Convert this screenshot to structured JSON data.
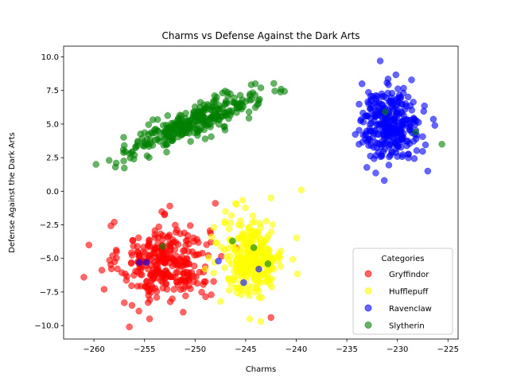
{
  "chart_data": {
    "type": "scatter",
    "title": "Charms vs Defense Against the Dark Arts",
    "xlabel": "Charms",
    "ylabel": "Defense Against the Dark Arts",
    "xlim": [
      -263,
      -224
    ],
    "ylim": [
      -11,
      10.8
    ],
    "xticks": [
      -260,
      -255,
      -250,
      -245,
      -240,
      -235,
      -230,
      -225
    ],
    "yticks": [
      -10.0,
      -7.5,
      -5.0,
      -2.5,
      0.0,
      2.5,
      5.0,
      7.5,
      10.0
    ],
    "xtick_labels": [
      "−260",
      "−255",
      "−250",
      "−245",
      "−240",
      "−235",
      "−230",
      "−225"
    ],
    "ytick_labels": [
      "−10.0",
      "−7.5",
      "−5.0",
      "−2.5",
      "0.0",
      "2.5",
      "5.0",
      "7.5",
      "10.0"
    ],
    "grid": false,
    "legend": {
      "title": "Categories",
      "position": "lower-right"
    },
    "marker_alpha": 0.6,
    "series": [
      {
        "name": "Gryffindor",
        "color": "#ff0000",
        "count": 300,
        "center": [
          -253,
          -5.3
        ],
        "spread": [
          2.2,
          1.4
        ],
        "outliers": [
          [
            -260.5,
            -4.0
          ],
          [
            -261,
            -6.4
          ],
          [
            -258,
            -2.3
          ],
          [
            -256.5,
            -10.1
          ],
          [
            -252.5,
            -1.1
          ],
          [
            -248,
            -0.9
          ],
          [
            -242.5,
            -9.4
          ],
          [
            -259,
            -7.3
          ],
          [
            -257,
            -8.3
          ],
          [
            -254.5,
            -9.5
          ]
        ]
      },
      {
        "name": "Hufflepuff",
        "color": "#ffff00",
        "count": 300,
        "center": [
          -244.3,
          -4.9
        ],
        "spread": [
          1.5,
          1.4
        ],
        "outliers": [
          [
            -239.5,
            0.1
          ],
          [
            -242.5,
            -0.5
          ],
          [
            -243.5,
            -9.7
          ],
          [
            -246,
            -0.9
          ],
          [
            -249,
            -5.8
          ],
          [
            -247.5,
            -8.2
          ],
          [
            -247,
            -1.5
          ]
        ]
      },
      {
        "name": "Ravenclaw",
        "color": "#0000ff",
        "count": 300,
        "center": [
          -230.7,
          5.0
        ],
        "spread": [
          1.5,
          1.3
        ],
        "outliers": [
          [
            -231.7,
            9.7
          ],
          [
            -233.8,
            3.5
          ],
          [
            -227,
            1.5
          ],
          [
            -226.3,
            4.9
          ],
          [
            -231.3,
            0.8
          ],
          [
            -233.5,
            8.0
          ],
          [
            -255.5,
            -5.3
          ],
          [
            -254.8,
            -5.3
          ],
          [
            -243.7,
            -5.8
          ],
          [
            -245.2,
            -6.8
          ],
          [
            -247.7,
            -5.2
          ]
        ]
      },
      {
        "name": "Slytherin",
        "color": "#008000",
        "count": 300,
        "center": [
          -250.2,
          5.1
        ],
        "spread": [
          3.1,
          1.1
        ],
        "correlation": 0.85,
        "outliers": [
          [
            -259.8,
            2.0
          ],
          [
            -258.5,
            2.3
          ],
          [
            -257.8,
            2.1
          ],
          [
            -257,
            3.4
          ],
          [
            -241.5,
            7.6
          ],
          [
            -243.5,
            7.7
          ],
          [
            -231.2,
            5.9
          ],
          [
            -228.2,
            4.4
          ],
          [
            -225.6,
            3.5
          ],
          [
            -253.2,
            -4.1
          ],
          [
            -244.2,
            -4.2
          ],
          [
            -242.8,
            -5.4
          ],
          [
            -246.3,
            -3.7
          ]
        ]
      }
    ]
  }
}
